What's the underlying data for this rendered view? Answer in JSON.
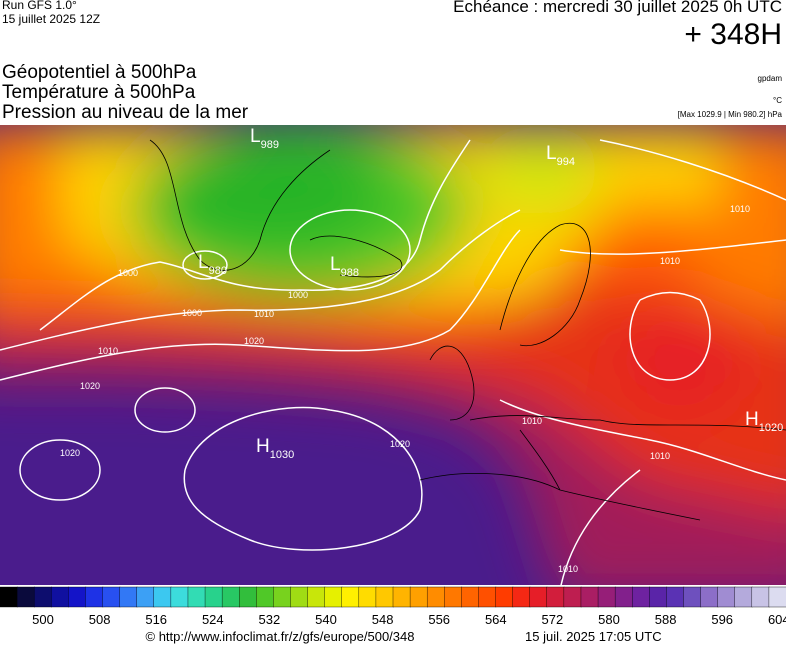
{
  "header": {
    "run": "Run GFS 1.0°",
    "run_date": "15 juillet 2025 12Z",
    "echeance": "Echéance : mercredi 30 juillet 2025 0h UTC",
    "lead": "+ 348H",
    "layers": [
      "Géopotentiel à 500hPa",
      "Température à 500hPa",
      "Pression au niveau de la mer"
    ],
    "units": [
      "gpdam",
      "°C",
      "[Max 1029.9 | Min 980.2] hPa"
    ]
  },
  "map": {
    "pressure_centers": [
      {
        "type": "L",
        "value": "989"
      },
      {
        "type": "L",
        "value": "994"
      },
      {
        "type": "L",
        "value": "980"
      },
      {
        "type": "L",
        "value": "988"
      },
      {
        "type": "H",
        "value": "1030"
      },
      {
        "type": "H",
        "value": "1020"
      }
    ],
    "isobar_labels": [
      "1010",
      "1010",
      "1000",
      "1000",
      "1000",
      "1010",
      "1020",
      "1010",
      "1020",
      "1020",
      "1020",
      "1010",
      "1010",
      "1010"
    ]
  },
  "legend": {
    "labels": [
      "500",
      "508",
      "516",
      "524",
      "532",
      "540",
      "548",
      "556",
      "564",
      "572",
      "580",
      "588",
      "596",
      "604"
    ],
    "colors": [
      "#000000",
      "#0a0a3c",
      "#0d0d6e",
      "#1010a0",
      "#1414c8",
      "#1e32e6",
      "#2850f0",
      "#3278f5",
      "#3ca0f5",
      "#3cc8f0",
      "#3cdcdc",
      "#32dcb4",
      "#28d28c",
      "#28c864",
      "#32be3c",
      "#50c828",
      "#78d21e",
      "#a0dc14",
      "#c8e60a",
      "#e6f000",
      "#fff000",
      "#ffdc00",
      "#ffc800",
      "#ffb400",
      "#ffa000",
      "#ff8c00",
      "#ff7800",
      "#ff6400",
      "#ff5000",
      "#ff3c00",
      "#f52814",
      "#e61e28",
      "#d21e3c",
      "#be1e50",
      "#aa1e64",
      "#961e78",
      "#82208c",
      "#6e22a0",
      "#5a24a8",
      "#5a32b4",
      "#6e50be",
      "#8c6ec8",
      "#a08cd2",
      "#b4aadc",
      "#c8c3e6",
      "#dcdcf0"
    ]
  },
  "footer": {
    "url": "© http://www.infoclimat.fr/z/gfs/europe/500/348",
    "timestamp": "15 juil. 2025 17:05 UTC"
  }
}
